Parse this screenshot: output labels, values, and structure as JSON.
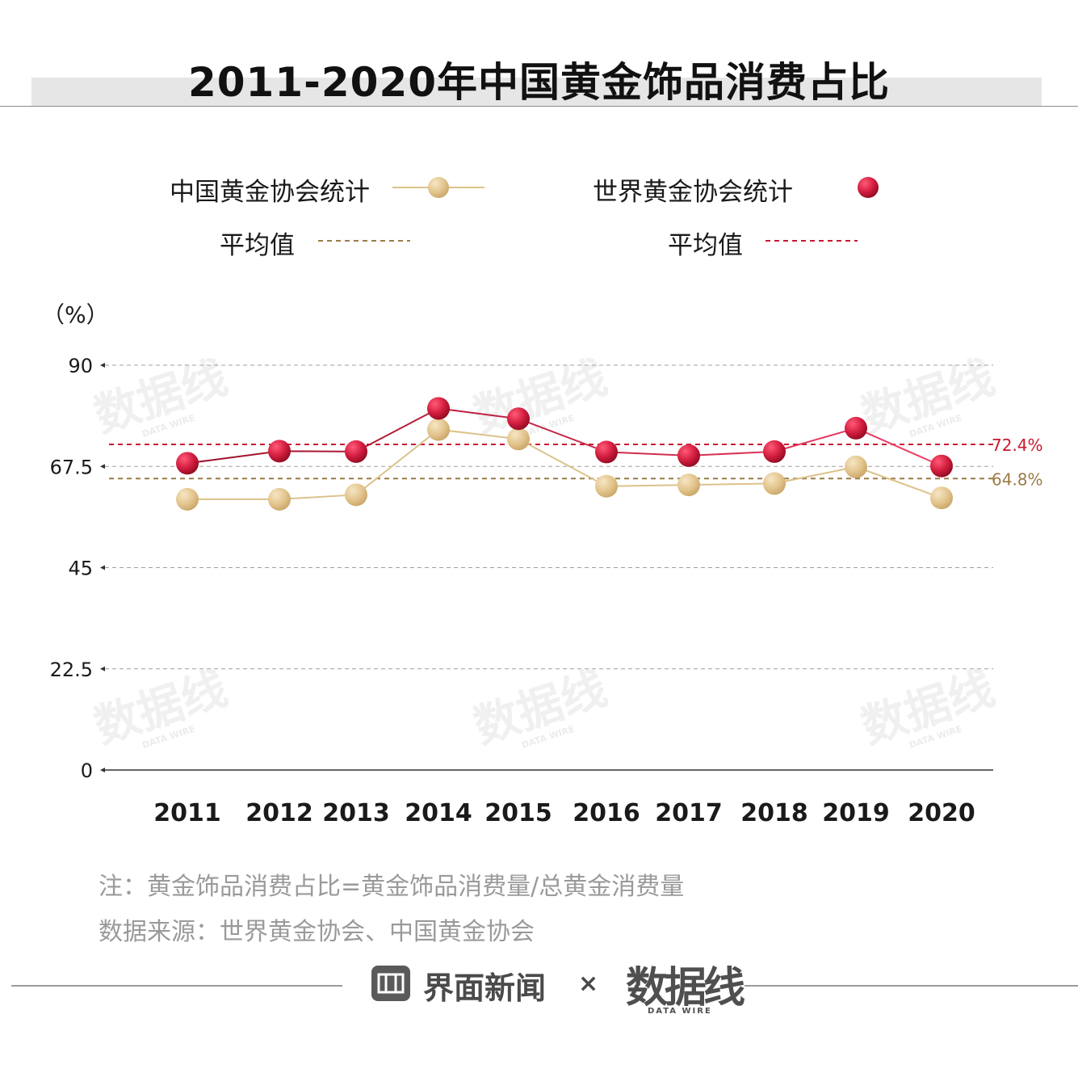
{
  "title": "2011-2020年中国黄金饰品消费占比",
  "legend": {
    "series_a": "中国黄金协会统计",
    "series_b": "世界黄金协会统计",
    "avg_a": "平均值",
    "avg_b": "平均值"
  },
  "unit": "（%）",
  "avg_labels": {
    "a": "64.8%",
    "b": "72.4%"
  },
  "notes": {
    "formula": "注：黄金饰品消费占比=黄金饰品消费量/总黄金消费量",
    "source": "数据来源：世界黄金协会、中国黄金协会"
  },
  "footer": {
    "brand": "界面新闻",
    "times": "×",
    "logo": "数据线",
    "logo_sub": "DATA WIRE"
  },
  "watermark": {
    "text": "数据线",
    "sub": "DATA WIRE"
  },
  "colors": {
    "gold": "#e2c48e",
    "gold_line": "#dcc28a",
    "red": "#d41e40",
    "red_dark": "#9c1028",
    "avg_gold": "#9c7b46",
    "avg_red": "#c9182f"
  },
  "chart_data": {
    "type": "line",
    "categories": [
      "2011",
      "2012",
      "2013",
      "2014",
      "2015",
      "2016",
      "2017",
      "2018",
      "2019",
      "2020"
    ],
    "series": [
      {
        "name": "中国黄金协会统计",
        "values": [
          60.2,
          60.2,
          61.2,
          75.7,
          73.6,
          63.1,
          63.4,
          63.7,
          67.4,
          60.5
        ]
      },
      {
        "name": "世界黄金协会统计",
        "values": [
          68.2,
          70.9,
          70.8,
          80.4,
          78.1,
          70.7,
          69.9,
          70.8,
          76.0,
          67.6
        ]
      }
    ],
    "averages": [
      {
        "series": "中国黄金协会统计",
        "value": 64.8
      },
      {
        "series": "世界黄金协会统计",
        "value": 72.4
      }
    ],
    "y_ticks": [
      "90",
      "67.5",
      "45",
      "22.5",
      "0"
    ],
    "ylim": [
      0,
      90
    ],
    "ylabel": "（%）",
    "grid": true
  }
}
